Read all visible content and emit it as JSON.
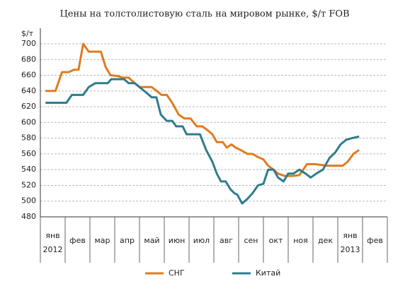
{
  "chart_data": {
    "type": "line",
    "title": "Цены на толстолистовую сталь на мировом рынке, $/т FOB",
    "y_label": "$/т",
    "categories": [
      "янв",
      "фев",
      "мар",
      "апр",
      "май",
      "июн",
      "июл",
      "авг",
      "сен",
      "окт",
      "ноя",
      "дек",
      "янв",
      "фев"
    ],
    "year_labels": [
      "2012",
      null,
      null,
      null,
      null,
      null,
      null,
      null,
      null,
      null,
      null,
      null,
      "2013",
      null
    ],
    "xlim": [
      0,
      14
    ],
    "ylim": [
      480,
      700
    ],
    "yticks": [
      480,
      500,
      520,
      540,
      560,
      580,
      600,
      620,
      640,
      660,
      680,
      700
    ],
    "grid": true,
    "legend": "bottom",
    "series": [
      {
        "name": "СНГ",
        "color": "#e07b1f",
        "x": [
          0.21,
          0.61,
          0.87,
          1.14,
          1.35,
          1.54,
          1.73,
          1.95,
          2.22,
          2.44,
          2.64,
          2.83,
          3.13,
          3.31,
          3.56,
          3.81,
          4.0,
          4.27,
          4.49,
          4.7,
          4.89,
          5.1,
          5.32,
          5.58,
          5.81,
          6.06,
          6.31,
          6.53,
          6.75,
          6.94,
          7.12,
          7.36,
          7.52,
          7.71,
          7.88,
          8.08,
          8.36,
          8.56,
          8.78,
          9.0,
          9.19,
          9.41,
          9.59,
          9.86,
          10.15,
          10.45,
          10.76,
          11.07,
          11.33,
          11.57,
          11.9,
          12.2,
          12.4,
          12.63,
          12.86
        ],
        "values": [
          640,
          640,
          664,
          664,
          667,
          667,
          700,
          690,
          690,
          690,
          670,
          660,
          659,
          657,
          657,
          650,
          645,
          645,
          645,
          640,
          635,
          635,
          625,
          610,
          605,
          605,
          595,
          595,
          590,
          585,
          575,
          575,
          568,
          572,
          568,
          565,
          560,
          560,
          556,
          553,
          545,
          540,
          535,
          532,
          532,
          533,
          547,
          547,
          546,
          545,
          545,
          545,
          550,
          560,
          565
        ]
      },
      {
        "name": "Китай",
        "color": "#2e7d8c",
        "x": [
          0.21,
          0.61,
          1.05,
          1.27,
          1.54,
          1.73,
          1.95,
          2.22,
          2.5,
          2.72,
          2.86,
          3.13,
          3.38,
          3.56,
          3.81,
          4.0,
          4.27,
          4.49,
          4.68,
          4.86,
          5.1,
          5.32,
          5.48,
          5.74,
          5.9,
          6.22,
          6.44,
          6.69,
          6.94,
          7.12,
          7.29,
          7.48,
          7.67,
          7.83,
          7.95,
          8.14,
          8.36,
          8.56,
          8.78,
          9.0,
          9.19,
          9.41,
          9.59,
          9.81,
          10.0,
          10.21,
          10.45,
          10.7,
          10.91,
          11.13,
          11.4,
          11.67,
          11.9,
          12.11,
          12.34,
          12.57,
          12.86
        ],
        "values": [
          625,
          625,
          625,
          635,
          635,
          635,
          645,
          650,
          650,
          650,
          655,
          655,
          655,
          650,
          650,
          645,
          638,
          632,
          632,
          610,
          602,
          602,
          595,
          595,
          585,
          585,
          585,
          565,
          550,
          535,
          525,
          525,
          515,
          510,
          508,
          497,
          503,
          510,
          520,
          522,
          540,
          540,
          530,
          525,
          535,
          535,
          540,
          535,
          530,
          535,
          540,
          555,
          562,
          572,
          578,
          580,
          582
        ]
      }
    ]
  }
}
